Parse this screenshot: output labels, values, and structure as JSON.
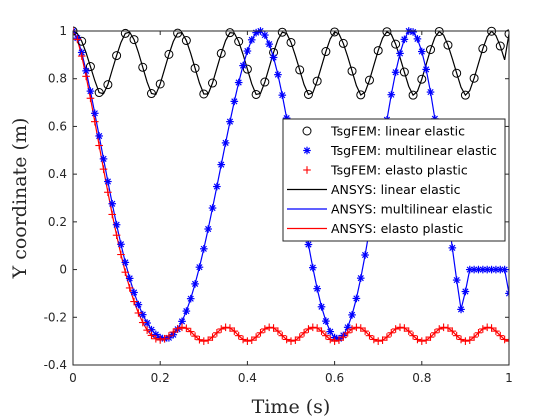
{
  "chart_data": {
    "type": "line",
    "xlabel": "Time (s)",
    "ylabel": "Y coordinate (m)",
    "xlim": [
      0,
      1
    ],
    "ylim": [
      -0.4,
      1
    ],
    "xticks": [
      0,
      0.2,
      0.4,
      0.6,
      0.8,
      1
    ],
    "yticks": [
      -0.4,
      -0.2,
      0,
      0.2,
      0.4,
      0.6,
      0.8,
      1
    ],
    "xtick_labels": [
      "0",
      "0.2",
      "0.4",
      "0.6",
      "0.8",
      "1"
    ],
    "ytick_labels": [
      "-0.4",
      "-0.2",
      "0",
      "0.2",
      "0.4",
      "0.6",
      "0.8",
      "1"
    ],
    "grid": false,
    "legend_position": "right",
    "x": [
      0,
      0.01,
      0.02,
      0.03,
      0.04,
      0.05,
      0.06,
      0.07,
      0.08,
      0.09,
      0.1,
      0.11,
      0.12,
      0.13,
      0.14,
      0.15,
      0.16,
      0.17,
      0.18,
      0.19,
      0.2,
      0.21,
      0.22,
      0.23,
      0.24,
      0.25,
      0.26,
      0.27,
      0.28,
      0.29,
      0.3,
      0.31,
      0.32,
      0.33,
      0.34,
      0.35,
      0.36,
      0.37,
      0.38,
      0.39,
      0.4,
      0.41,
      0.42,
      0.43,
      0.44,
      0.45,
      0.46,
      0.47,
      0.48,
      0.49,
      0.5,
      0.51,
      0.52,
      0.53,
      0.54,
      0.55,
      0.56,
      0.57,
      0.58,
      0.59,
      0.6,
      0.61,
      0.62,
      0.63,
      0.64,
      0.65,
      0.66,
      0.67,
      0.68,
      0.69,
      0.7,
      0.71,
      0.72,
      0.73,
      0.74,
      0.75,
      0.76,
      0.77,
      0.78,
      0.79,
      0.8,
      0.81,
      0.82,
      0.83,
      0.84,
      0.85,
      0.86,
      0.87,
      0.88,
      0.89,
      0.9,
      0.91,
      0.92,
      0.93,
      0.94,
      0.95,
      0.96,
      0.97,
      0.98,
      0.99,
      1
    ],
    "series": [
      {
        "name": "TsgFEM: linear elastic",
        "marker": "circle",
        "color": "#000000",
        "values": [
          1,
          0.989,
          0.957,
          0.909,
          0.851,
          0.792,
          0.742,
          0.737,
          0.775,
          0.837,
          0.897,
          0.952,
          0.99,
          0.995,
          0.964,
          0.91,
          0.848,
          0.786,
          0.738,
          0.734,
          0.778,
          0.84,
          0.902,
          0.956,
          0.991,
          0.993,
          0.96,
          0.906,
          0.844,
          0.782,
          0.736,
          0.736,
          0.782,
          0.844,
          0.906,
          0.96,
          0.993,
          0.991,
          0.956,
          0.902,
          0.84,
          0.778,
          0.734,
          0.738,
          0.786,
          0.848,
          0.91,
          0.964,
          0.995,
          0.99,
          0.952,
          0.897,
          0.837,
          0.775,
          0.734,
          0.741,
          0.79,
          0.852,
          0.914,
          0.967,
          0.996,
          0.988,
          0.948,
          0.893,
          0.832,
          0.771,
          0.732,
          0.744,
          0.794,
          0.856,
          0.918,
          0.97,
          0.997,
          0.986,
          0.945,
          0.889,
          0.828,
          0.768,
          0.731,
          0.747,
          0.798,
          0.86,
          0.922,
          0.973,
          0.998,
          0.983,
          0.941,
          0.884,
          0.823,
          0.764,
          0.731,
          0.75,
          0.802,
          0.864,
          0.926,
          0.976,
          0.999,
          0.981,
          0.937,
          0.879,
          0.988
        ]
      },
      {
        "name": "TsgFEM: multilinear elastic",
        "marker": "asterisk",
        "color": "#0000ff",
        "values": [
          1,
          0.97,
          0.91,
          0.833,
          0.748,
          0.655,
          0.56,
          0.464,
          0.369,
          0.276,
          0.188,
          0.106,
          0.03,
          -0.037,
          -0.096,
          -0.147,
          -0.189,
          -0.224,
          -0.252,
          -0.272,
          -0.285,
          -0.29,
          -0.286,
          -0.273,
          -0.25,
          -0.217,
          -0.174,
          -0.122,
          -0.06,
          0.01,
          0.087,
          0.17,
          0.258,
          0.348,
          0.44,
          0.531,
          0.62,
          0.705,
          0.784,
          0.855,
          0.916,
          0.963,
          0.993,
          1.0,
          0.983,
          0.945,
          0.889,
          0.817,
          0.731,
          0.635,
          0.532,
          0.424,
          0.315,
          0.208,
          0.105,
          0.008,
          -0.08,
          -0.156,
          -0.216,
          -0.26,
          -0.285,
          -0.29,
          -0.276,
          -0.242,
          -0.19,
          -0.121,
          -0.036,
          0.061,
          0.168,
          0.282,
          0.399,
          0.515,
          0.628,
          0.733,
          0.827,
          0.906,
          0.965,
          1.0,
          0.996,
          0.967,
          0.914,
          0.839,
          0.744,
          0.632,
          0.506,
          0.371,
          0.231,
          0.091,
          -0.044,
          -0.167,
          -0.092,
          0.0,
          0.0,
          0.0,
          0.0,
          0.0,
          0.0,
          0.0,
          0.0,
          0.0,
          -0.1
        ]
      },
      {
        "name": "TsgFEM: elasto plastic",
        "marker": "plus",
        "color": "#ff0000",
        "values": [
          1,
          0.965,
          0.895,
          0.81,
          0.718,
          0.62,
          0.52,
          0.421,
          0.324,
          0.231,
          0.144,
          0.063,
          -0.011,
          -0.077,
          -0.134,
          -0.182,
          -0.222,
          -0.254,
          -0.276,
          -0.29,
          -0.295,
          -0.29,
          -0.278,
          -0.262,
          -0.248,
          -0.242,
          -0.246,
          -0.26,
          -0.279,
          -0.294,
          -0.3,
          -0.296,
          -0.283,
          -0.265,
          -0.249,
          -0.242,
          -0.245,
          -0.258,
          -0.277,
          -0.293,
          -0.3,
          -0.296,
          -0.283,
          -0.265,
          -0.249,
          -0.242,
          -0.245,
          -0.258,
          -0.277,
          -0.293,
          -0.3,
          -0.296,
          -0.283,
          -0.265,
          -0.249,
          -0.242,
          -0.245,
          -0.258,
          -0.277,
          -0.293,
          -0.3,
          -0.296,
          -0.283,
          -0.265,
          -0.249,
          -0.242,
          -0.245,
          -0.258,
          -0.277,
          -0.293,
          -0.3,
          -0.296,
          -0.283,
          -0.265,
          -0.249,
          -0.242,
          -0.245,
          -0.258,
          -0.277,
          -0.293,
          -0.3,
          -0.296,
          -0.283,
          -0.265,
          -0.249,
          -0.242,
          -0.245,
          -0.258,
          -0.277,
          -0.293,
          -0.3,
          -0.296,
          -0.283,
          -0.265,
          -0.249,
          -0.242,
          -0.245,
          -0.258,
          -0.277,
          -0.293,
          -0.3
        ]
      },
      {
        "name": "ANSYS: linear elastic",
        "marker": "none",
        "color": "#000000",
        "values": [
          1,
          0.989,
          0.957,
          0.909,
          0.851,
          0.792,
          0.742,
          0.737,
          0.775,
          0.837,
          0.897,
          0.952,
          0.99,
          0.995,
          0.964,
          0.91,
          0.848,
          0.786,
          0.738,
          0.734,
          0.778,
          0.84,
          0.902,
          0.956,
          0.991,
          0.993,
          0.96,
          0.906,
          0.844,
          0.782,
          0.736,
          0.736,
          0.782,
          0.844,
          0.906,
          0.96,
          0.993,
          0.991,
          0.956,
          0.902,
          0.84,
          0.778,
          0.734,
          0.738,
          0.786,
          0.848,
          0.91,
          0.964,
          0.995,
          0.99,
          0.952,
          0.897,
          0.837,
          0.775,
          0.734,
          0.741,
          0.79,
          0.852,
          0.914,
          0.967,
          0.996,
          0.988,
          0.948,
          0.893,
          0.832,
          0.771,
          0.732,
          0.744,
          0.794,
          0.856,
          0.918,
          0.97,
          0.997,
          0.986,
          0.945,
          0.889,
          0.828,
          0.768,
          0.731,
          0.747,
          0.798,
          0.86,
          0.922,
          0.973,
          0.998,
          0.983,
          0.941,
          0.884,
          0.823,
          0.764,
          0.731,
          0.75,
          0.802,
          0.864,
          0.926,
          0.976,
          0.999,
          0.981,
          0.937,
          0.879,
          0.988
        ]
      },
      {
        "name": "ANSYS: multilinear elastic",
        "marker": "none",
        "color": "#0000ff",
        "values": [
          1,
          0.97,
          0.91,
          0.833,
          0.748,
          0.655,
          0.56,
          0.464,
          0.369,
          0.276,
          0.188,
          0.106,
          0.03,
          -0.037,
          -0.096,
          -0.147,
          -0.189,
          -0.224,
          -0.252,
          -0.272,
          -0.285,
          -0.29,
          -0.286,
          -0.273,
          -0.25,
          -0.217,
          -0.174,
          -0.122,
          -0.06,
          0.01,
          0.087,
          0.17,
          0.258,
          0.348,
          0.44,
          0.531,
          0.62,
          0.705,
          0.784,
          0.855,
          0.916,
          0.963,
          0.993,
          1.0,
          0.983,
          0.945,
          0.889,
          0.817,
          0.731,
          0.635,
          0.532,
          0.424,
          0.315,
          0.208,
          0.105,
          0.008,
          -0.08,
          -0.156,
          -0.216,
          -0.26,
          -0.285,
          -0.29,
          -0.276,
          -0.242,
          -0.19,
          -0.121,
          -0.036,
          0.061,
          0.168,
          0.282,
          0.399,
          0.515,
          0.628,
          0.733,
          0.827,
          0.906,
          0.965,
          1.0,
          0.996,
          0.967,
          0.914,
          0.839,
          0.744,
          0.632,
          0.506,
          0.371,
          0.231,
          0.091,
          -0.044,
          -0.167,
          -0.092,
          0.0,
          0.0,
          0.0,
          0.0,
          0.0,
          0.0,
          0.0,
          0.0,
          0.0,
          -0.1
        ]
      },
      {
        "name": "ANSYS: elasto plastic",
        "marker": "none",
        "color": "#ff0000",
        "values": [
          1,
          0.965,
          0.895,
          0.81,
          0.718,
          0.62,
          0.52,
          0.421,
          0.324,
          0.231,
          0.144,
          0.063,
          -0.011,
          -0.077,
          -0.134,
          -0.182,
          -0.222,
          -0.254,
          -0.276,
          -0.29,
          -0.295,
          -0.29,
          -0.278,
          -0.262,
          -0.248,
          -0.242,
          -0.246,
          -0.26,
          -0.279,
          -0.294,
          -0.3,
          -0.296,
          -0.283,
          -0.265,
          -0.249,
          -0.242,
          -0.245,
          -0.258,
          -0.277,
          -0.293,
          -0.3,
          -0.296,
          -0.283,
          -0.265,
          -0.249,
          -0.242,
          -0.245,
          -0.258,
          -0.277,
          -0.293,
          -0.3,
          -0.296,
          -0.283,
          -0.265,
          -0.249,
          -0.242,
          -0.245,
          -0.258,
          -0.277,
          -0.293,
          -0.3,
          -0.296,
          -0.283,
          -0.265,
          -0.249,
          -0.242,
          -0.245,
          -0.258,
          -0.277,
          -0.293,
          -0.3,
          -0.296,
          -0.283,
          -0.265,
          -0.249,
          -0.242,
          -0.245,
          -0.258,
          -0.277,
          -0.293,
          -0.3,
          -0.296,
          -0.283,
          -0.265,
          -0.249,
          -0.242,
          -0.245,
          -0.258,
          -0.277,
          -0.293,
          -0.3,
          -0.296,
          -0.283,
          -0.265,
          -0.249,
          -0.242,
          -0.245,
          -0.258,
          -0.277,
          -0.293,
          -0.3
        ]
      }
    ]
  }
}
